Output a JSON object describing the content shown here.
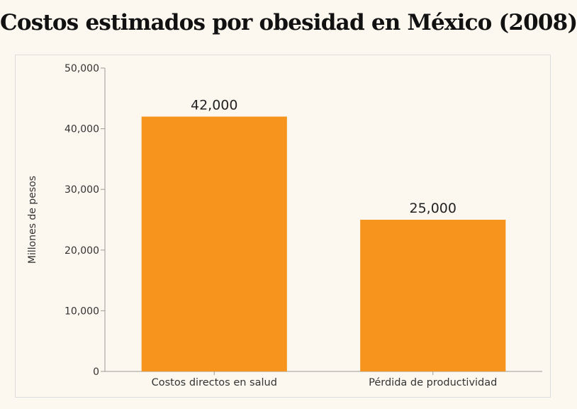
{
  "chart_data": {
    "type": "bar",
    "title": "Costos estimados por obesidad en México (2008)",
    "xlabel": "",
    "ylabel": "Millones de pesos",
    "categories": [
      "Costos directos en salud",
      "Pérdida de productividad"
    ],
    "values": [
      42000,
      25000
    ],
    "data_labels": [
      "42,000",
      "25,000"
    ],
    "ylim": [
      0,
      50000
    ],
    "yticks": [
      0,
      10000,
      20000,
      30000,
      40000,
      50000
    ],
    "ytick_labels": [
      "0",
      "10,000",
      "20,000",
      "30,000",
      "40,000",
      "50,000"
    ],
    "bar_color": "#F7941D",
    "grid": false,
    "legend": "none"
  }
}
